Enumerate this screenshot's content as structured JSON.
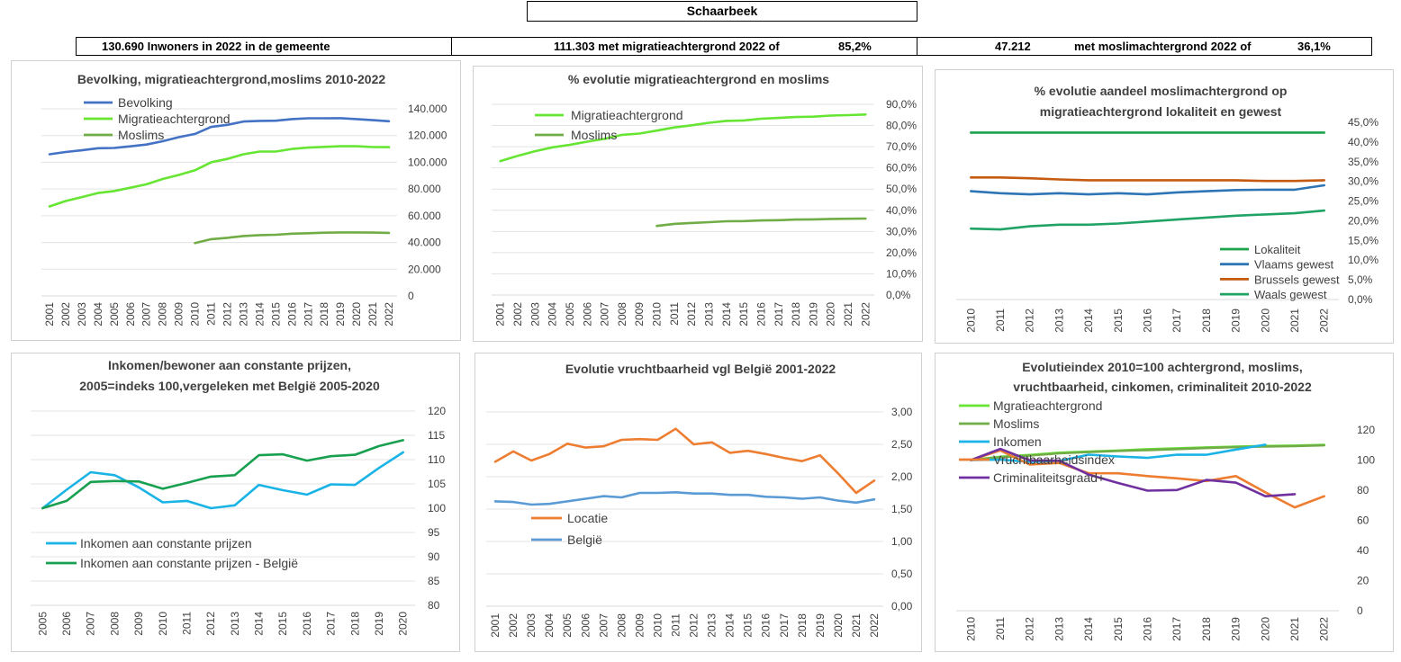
{
  "header": {
    "title": "Schaarbeek",
    "population_text": "130.690 Inwoners in 2022 in de gemeente",
    "migration_text": "111.303 met migratieachtergrond 2022 of",
    "migration_pct": "85,2%",
    "muslim_count": "47.212",
    "muslim_text": "met moslimachtergrond 2022 of",
    "muslim_pct": "36,1%"
  },
  "chart_data": [
    {
      "id": "c1",
      "type": "line",
      "title": [
        "Bevolking, migratieachtergrond,moslims 2010-2022"
      ],
      "x": [
        "2001",
        "2002",
        "2003",
        "2004",
        "2005",
        "2006",
        "2007",
        "2008",
        "2009",
        "2010",
        "2011",
        "2012",
        "2013",
        "2014",
        "2015",
        "2016",
        "2017",
        "2018",
        "2019",
        "2020",
        "2021",
        "2022"
      ],
      "ylim": [
        0,
        140000
      ],
      "yticks": [
        0,
        20000,
        40000,
        60000,
        80000,
        100000,
        120000,
        140000
      ],
      "ytick_labels": [
        "0",
        "20.000",
        "40.000",
        "60.000",
        "80.000",
        "100.000",
        "120.000",
        "140.000"
      ],
      "legend_position": "top-left",
      "series": [
        {
          "name": "Bevolking",
          "color": "#4472c4",
          "values": [
            106000,
            107700,
            109000,
            110500,
            110700,
            111900,
            113300,
            115800,
            118800,
            121200,
            126500,
            128000,
            130500,
            131000,
            131100,
            132300,
            132900,
            132900,
            133000,
            132300,
            131500,
            130690
          ]
        },
        {
          "name": "Migratieachtergrond",
          "color": "#66e533",
          "values": [
            67000,
            71000,
            74000,
            77000,
            78500,
            81000,
            83500,
            87500,
            90500,
            94000,
            100000,
            102500,
            106000,
            108000,
            108000,
            110000,
            111000,
            111500,
            112000,
            112000,
            111400,
            111303
          ]
        },
        {
          "name": "Moslims",
          "color": "#70ad47",
          "values": [
            null,
            null,
            null,
            null,
            null,
            null,
            null,
            null,
            null,
            39500,
            42500,
            43500,
            44800,
            45500,
            45800,
            46600,
            46900,
            47300,
            47500,
            47500,
            47400,
            47212
          ]
        }
      ]
    },
    {
      "id": "c2",
      "type": "line",
      "title": [
        "% evolutie migratieachtergrond  en moslims"
      ],
      "x": [
        "2001",
        "2002",
        "2003",
        "2004",
        "2005",
        "2006",
        "2007",
        "2008",
        "2009",
        "2010",
        "2011",
        "2012",
        "2013",
        "2014",
        "2015",
        "2016",
        "2017",
        "2018",
        "2019",
        "2020",
        "2021",
        "2022"
      ],
      "ylim": [
        0,
        90
      ],
      "yticks": [
        0,
        10,
        20,
        30,
        40,
        50,
        60,
        70,
        80,
        90
      ],
      "ytick_labels": [
        "0,0%",
        "10,0%",
        "20,0%",
        "30,0%",
        "40,0%",
        "50,0%",
        "60,0%",
        "70,0%",
        "80,0%",
        "90,0%"
      ],
      "legend_position": "top-left",
      "series": [
        {
          "name": "Migratieachtergrond",
          "color": "#66e533",
          "values": [
            63.2,
            65.7,
            67.9,
            69.7,
            70.9,
            72.4,
            73.7,
            75.6,
            76.2,
            77.6,
            79.1,
            80.1,
            81.3,
            82.2,
            82.4,
            83.2,
            83.6,
            84.0,
            84.2,
            84.7,
            84.9,
            85.2
          ]
        },
        {
          "name": "Moslims",
          "color": "#70ad47",
          "values": [
            null,
            null,
            null,
            null,
            null,
            null,
            null,
            null,
            null,
            32.6,
            33.6,
            34.0,
            34.4,
            34.8,
            34.9,
            35.2,
            35.3,
            35.6,
            35.7,
            35.9,
            36.0,
            36.1
          ]
        }
      ]
    },
    {
      "id": "c3",
      "type": "line",
      "title": [
        "% evolutie aandeel moslimachtergrond op",
        "migratieachtergrond lokaliteit  en gewest"
      ],
      "x": [
        "2010",
        "2011",
        "2012",
        "2013",
        "2014",
        "2015",
        "2016",
        "2017",
        "2018",
        "2019",
        "2020",
        "2021",
        "2022"
      ],
      "ylim": [
        0,
        45
      ],
      "yticks": [
        0,
        5,
        10,
        15,
        20,
        25,
        30,
        35,
        40,
        45
      ],
      "ytick_labels": [
        "0,0%",
        "5,0%",
        "10,0%",
        "15,0%",
        "20,0%",
        "25,0%",
        "30,0%",
        "35,0%",
        "40,0%",
        "45,0%"
      ],
      "legend_position": "bottom-right",
      "series": [
        {
          "name": "Lokaliteit",
          "color": "#1aa34a",
          "values": [
            42.4,
            42.4,
            42.4,
            42.4,
            42.4,
            42.4,
            42.4,
            42.4,
            42.4,
            42.4,
            42.4,
            42.4,
            42.4
          ]
        },
        {
          "name": "Vlaams gewest",
          "color": "#2e75b6",
          "values": [
            27.5,
            27.0,
            26.7,
            27.0,
            26.7,
            27.0,
            26.7,
            27.2,
            27.5,
            27.8,
            27.9,
            27.9,
            29.0
          ]
        },
        {
          "name": "Brussels gewest",
          "color": "#c55a11",
          "values": [
            31.0,
            31.0,
            30.8,
            30.5,
            30.3,
            30.3,
            30.3,
            30.3,
            30.3,
            30.3,
            30.1,
            30.1,
            30.3
          ]
        },
        {
          "name": "Waals gewest",
          "color": "#21a366",
          "values": [
            18.0,
            17.8,
            18.6,
            19.0,
            19.0,
            19.3,
            19.8,
            20.3,
            20.8,
            21.3,
            21.6,
            21.9,
            22.6
          ]
        }
      ]
    },
    {
      "id": "c4",
      "type": "line",
      "title": [
        "Inkomen/bewoner aan constante prijzen,",
        "2005=indeks 100,vergeleken met België 2005-2020"
      ],
      "x": [
        "2005",
        "2006",
        "2007",
        "2008",
        "2009",
        "2010",
        "2011",
        "2012",
        "2013",
        "2014",
        "2015",
        "2016",
        "2017",
        "2018",
        "2019",
        "2020"
      ],
      "ylim": [
        80,
        120
      ],
      "yticks": [
        80,
        85,
        90,
        95,
        100,
        105,
        110,
        115,
        120
      ],
      "ytick_labels": [
        "80",
        "85",
        "90",
        "95",
        "100",
        "105",
        "110",
        "115",
        "120"
      ],
      "legend_position": "bottom-left",
      "series": [
        {
          "name": "Inkomen aan constante prijzen",
          "color": "#1ab3e6",
          "values": [
            100,
            103.8,
            107.4,
            106.8,
            104.3,
            101.2,
            101.5,
            100.0,
            100.6,
            104.8,
            103.7,
            102.8,
            104.9,
            104.8,
            108.3,
            111.5
          ]
        },
        {
          "name": "Inkomen aan constante prijzen - België",
          "color": "#18a050",
          "values": [
            100,
            101.5,
            105.4,
            105.6,
            105.5,
            104.0,
            105.2,
            106.5,
            106.8,
            110.9,
            111.1,
            109.8,
            110.7,
            111.0,
            112.8,
            114.0
          ]
        }
      ]
    },
    {
      "id": "c5",
      "type": "line",
      "title": [
        "Evolutie vruchtbaarheid vgl België 2001-2022"
      ],
      "x": [
        "2001",
        "2002",
        "2003",
        "2004",
        "2005",
        "2006",
        "2007",
        "2008",
        "2009",
        "2010",
        "2011",
        "2012",
        "2013",
        "2014",
        "2015",
        "2016",
        "2017",
        "2018",
        "2019",
        "2020",
        "2021",
        "2022"
      ],
      "ylim": [
        0,
        3
      ],
      "yticks": [
        0,
        0.5,
        1,
        1.5,
        2,
        2.5,
        3
      ],
      "ytick_labels": [
        "0,00",
        "0,50",
        "1,00",
        "1,50",
        "2,00",
        "2,50",
        "3,00"
      ],
      "legend_position": "left",
      "series": [
        {
          "name": "Locatie",
          "color": "#ed7d31",
          "values": [
            2.23,
            2.39,
            2.25,
            2.35,
            2.51,
            2.45,
            2.47,
            2.57,
            2.58,
            2.57,
            2.74,
            2.5,
            2.53,
            2.37,
            2.4,
            2.35,
            2.29,
            2.24,
            2.33,
            2.05,
            1.75,
            1.94
          ]
        },
        {
          "name": "België",
          "color": "#5b9bd5",
          "values": [
            1.62,
            1.61,
            1.57,
            1.58,
            1.62,
            1.66,
            1.7,
            1.68,
            1.75,
            1.75,
            1.76,
            1.74,
            1.74,
            1.72,
            1.72,
            1.69,
            1.68,
            1.66,
            1.68,
            1.63,
            1.6,
            1.65
          ]
        }
      ]
    },
    {
      "id": "c6",
      "type": "line",
      "title": [
        "Evolutieindex 2010=100 achtergrond, moslims,",
        "vruchtbaarheid, cinkomen, criminaliteit  2010-2022"
      ],
      "x": [
        "2010",
        "2011",
        "2012",
        "2013",
        "2014",
        "2015",
        "2016",
        "2017",
        "2018",
        "2019",
        "2020",
        "2021",
        "2022"
      ],
      "ylim": [
        0,
        120
      ],
      "yticks": [
        0,
        20,
        40,
        60,
        80,
        100,
        120
      ],
      "ytick_labels": [
        "0",
        "20",
        "40",
        "60",
        "80",
        "100",
        "120"
      ],
      "legend_position": "top-left",
      "series": [
        {
          "name": "Mgratieachtergrond",
          "color": "#66e533",
          "values": [
            100,
            102.2,
            103.4,
            104.9,
            105.6,
            106.3,
            107.2,
            107.8,
            108.4,
            108.9,
            109.4,
            109.6,
            110.1
          ]
        },
        {
          "name": "Moslims",
          "color": "#70ad47",
          "values": [
            100,
            101.9,
            103.0,
            104.5,
            105.3,
            106.1,
            106.6,
            107.3,
            108.0,
            108.6,
            109.0,
            109.3,
            109.8
          ]
        },
        {
          "name": "Inkomen",
          "color": "#1ab3e6",
          "values": [
            100,
            100.3,
            98.8,
            99.4,
            103.6,
            102.4,
            101.5,
            103.6,
            103.5,
            107.0,
            110.2,
            null,
            null
          ]
        },
        {
          "name": "Vruchtbaarheidsindex",
          "color": "#ed7d31",
          "values": [
            100,
            106.4,
            97.0,
            98.1,
            91.3,
            91.2,
            89.4,
            87.9,
            86.1,
            89.4,
            78.6,
            68.6,
            76.0
          ]
        },
        {
          "name": "Criminaliteitsgraad+",
          "color": "#7030a0",
          "values": [
            100,
            107.4,
            99.8,
            99.6,
            90.4,
            84.8,
            79.7,
            80.1,
            86.8,
            85.0,
            76.0,
            77.4,
            null
          ]
        }
      ]
    }
  ]
}
